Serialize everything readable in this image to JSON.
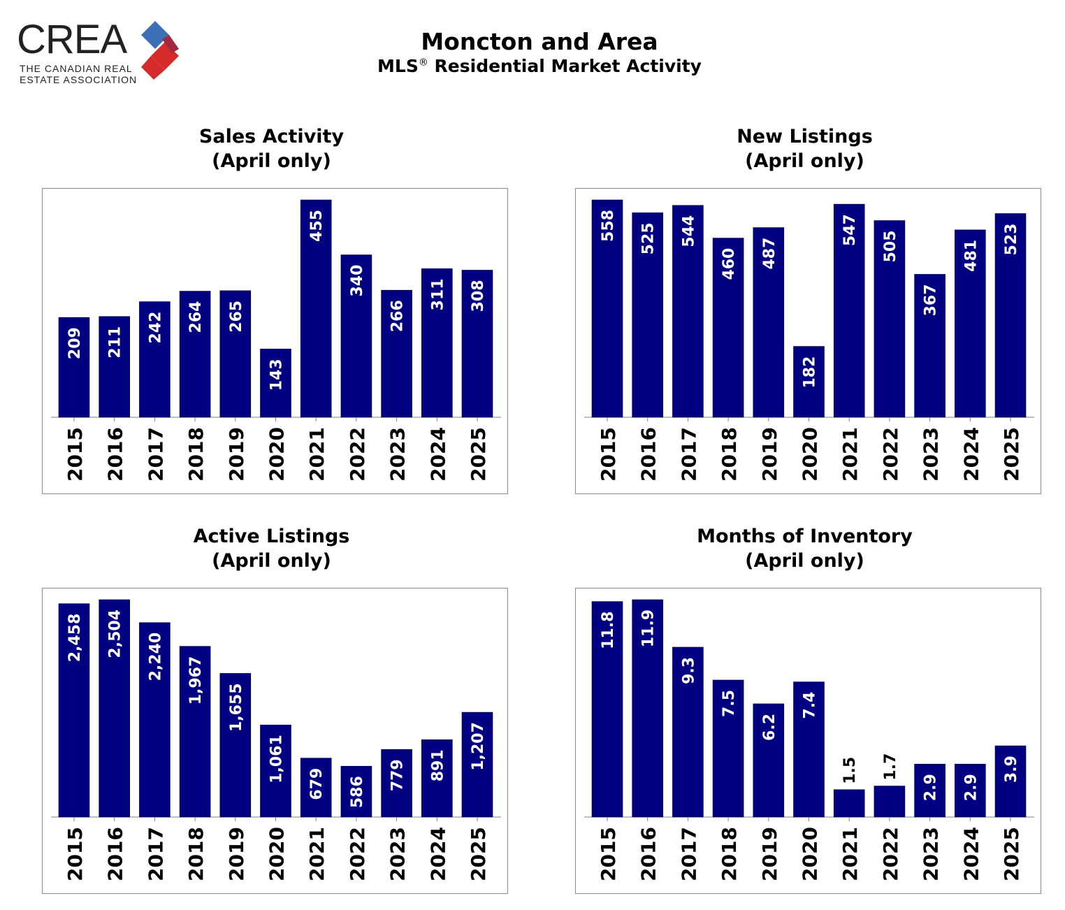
{
  "header": {
    "logo": {
      "wordmark": "CREA",
      "line1": "THE CANADIAN REAL",
      "line2": "ESTATE ASSOCIATION"
    },
    "title": "Moncton and Area",
    "subtitle_prefix": "MLS",
    "subtitle_mark": "®",
    "subtitle_suffix": " Residential Market Activity"
  },
  "colors": {
    "bar": "#000080",
    "frame": "#8c8c8c",
    "logo_blue": "#3c6fb5",
    "logo_red": "#d52b2b",
    "logo_dark_red": "#a3283f"
  },
  "chart_data": [
    {
      "type": "bar",
      "title": "Sales Activity",
      "subtitle": "(April only)",
      "categories": [
        "2015",
        "2016",
        "2017",
        "2018",
        "2019",
        "2020",
        "2021",
        "2022",
        "2023",
        "2024",
        "2025"
      ],
      "values": [
        209,
        211,
        242,
        264,
        265,
        143,
        455,
        340,
        266,
        311,
        308
      ],
      "labels": [
        "209",
        "211",
        "242",
        "264",
        "265",
        "143",
        "455",
        "340",
        "266",
        "311",
        "308"
      ],
      "ylim": [
        0,
        455
      ]
    },
    {
      "type": "bar",
      "title": "New Listings",
      "subtitle": "(April only)",
      "categories": [
        "2015",
        "2016",
        "2017",
        "2018",
        "2019",
        "2020",
        "2021",
        "2022",
        "2023",
        "2024",
        "2025"
      ],
      "values": [
        558,
        525,
        544,
        460,
        487,
        182,
        547,
        505,
        367,
        481,
        523
      ],
      "labels": [
        "558",
        "525",
        "544",
        "460",
        "487",
        "182",
        "547",
        "505",
        "367",
        "481",
        "523"
      ],
      "ylim": [
        0,
        558
      ]
    },
    {
      "type": "bar",
      "title": "Active Listings",
      "subtitle": "(April only)",
      "categories": [
        "2015",
        "2016",
        "2017",
        "2018",
        "2019",
        "2020",
        "2021",
        "2022",
        "2023",
        "2024",
        "2025"
      ],
      "values": [
        2458,
        2504,
        2240,
        1967,
        1655,
        1061,
        679,
        586,
        779,
        891,
        1207
      ],
      "labels": [
        "2,458",
        "2,504",
        "2,240",
        "1,967",
        "1,655",
        "1,061",
        "679",
        "586",
        "779",
        "891",
        "1,207"
      ],
      "ylim": [
        0,
        2504
      ]
    },
    {
      "type": "bar",
      "title": "Months of Inventory",
      "subtitle": "(April only)",
      "categories": [
        "2015",
        "2016",
        "2017",
        "2018",
        "2019",
        "2020",
        "2021",
        "2022",
        "2023",
        "2024",
        "2025"
      ],
      "values": [
        11.8,
        11.9,
        9.3,
        7.5,
        6.2,
        7.4,
        1.5,
        1.7,
        2.9,
        2.9,
        3.9
      ],
      "labels": [
        "11.8",
        "11.9",
        "9.3",
        "7.5",
        "6.2",
        "7.4",
        "1.5",
        "1.7",
        "2.9",
        "2.9",
        "3.9"
      ],
      "ylim": [
        0,
        11.9
      ]
    }
  ]
}
